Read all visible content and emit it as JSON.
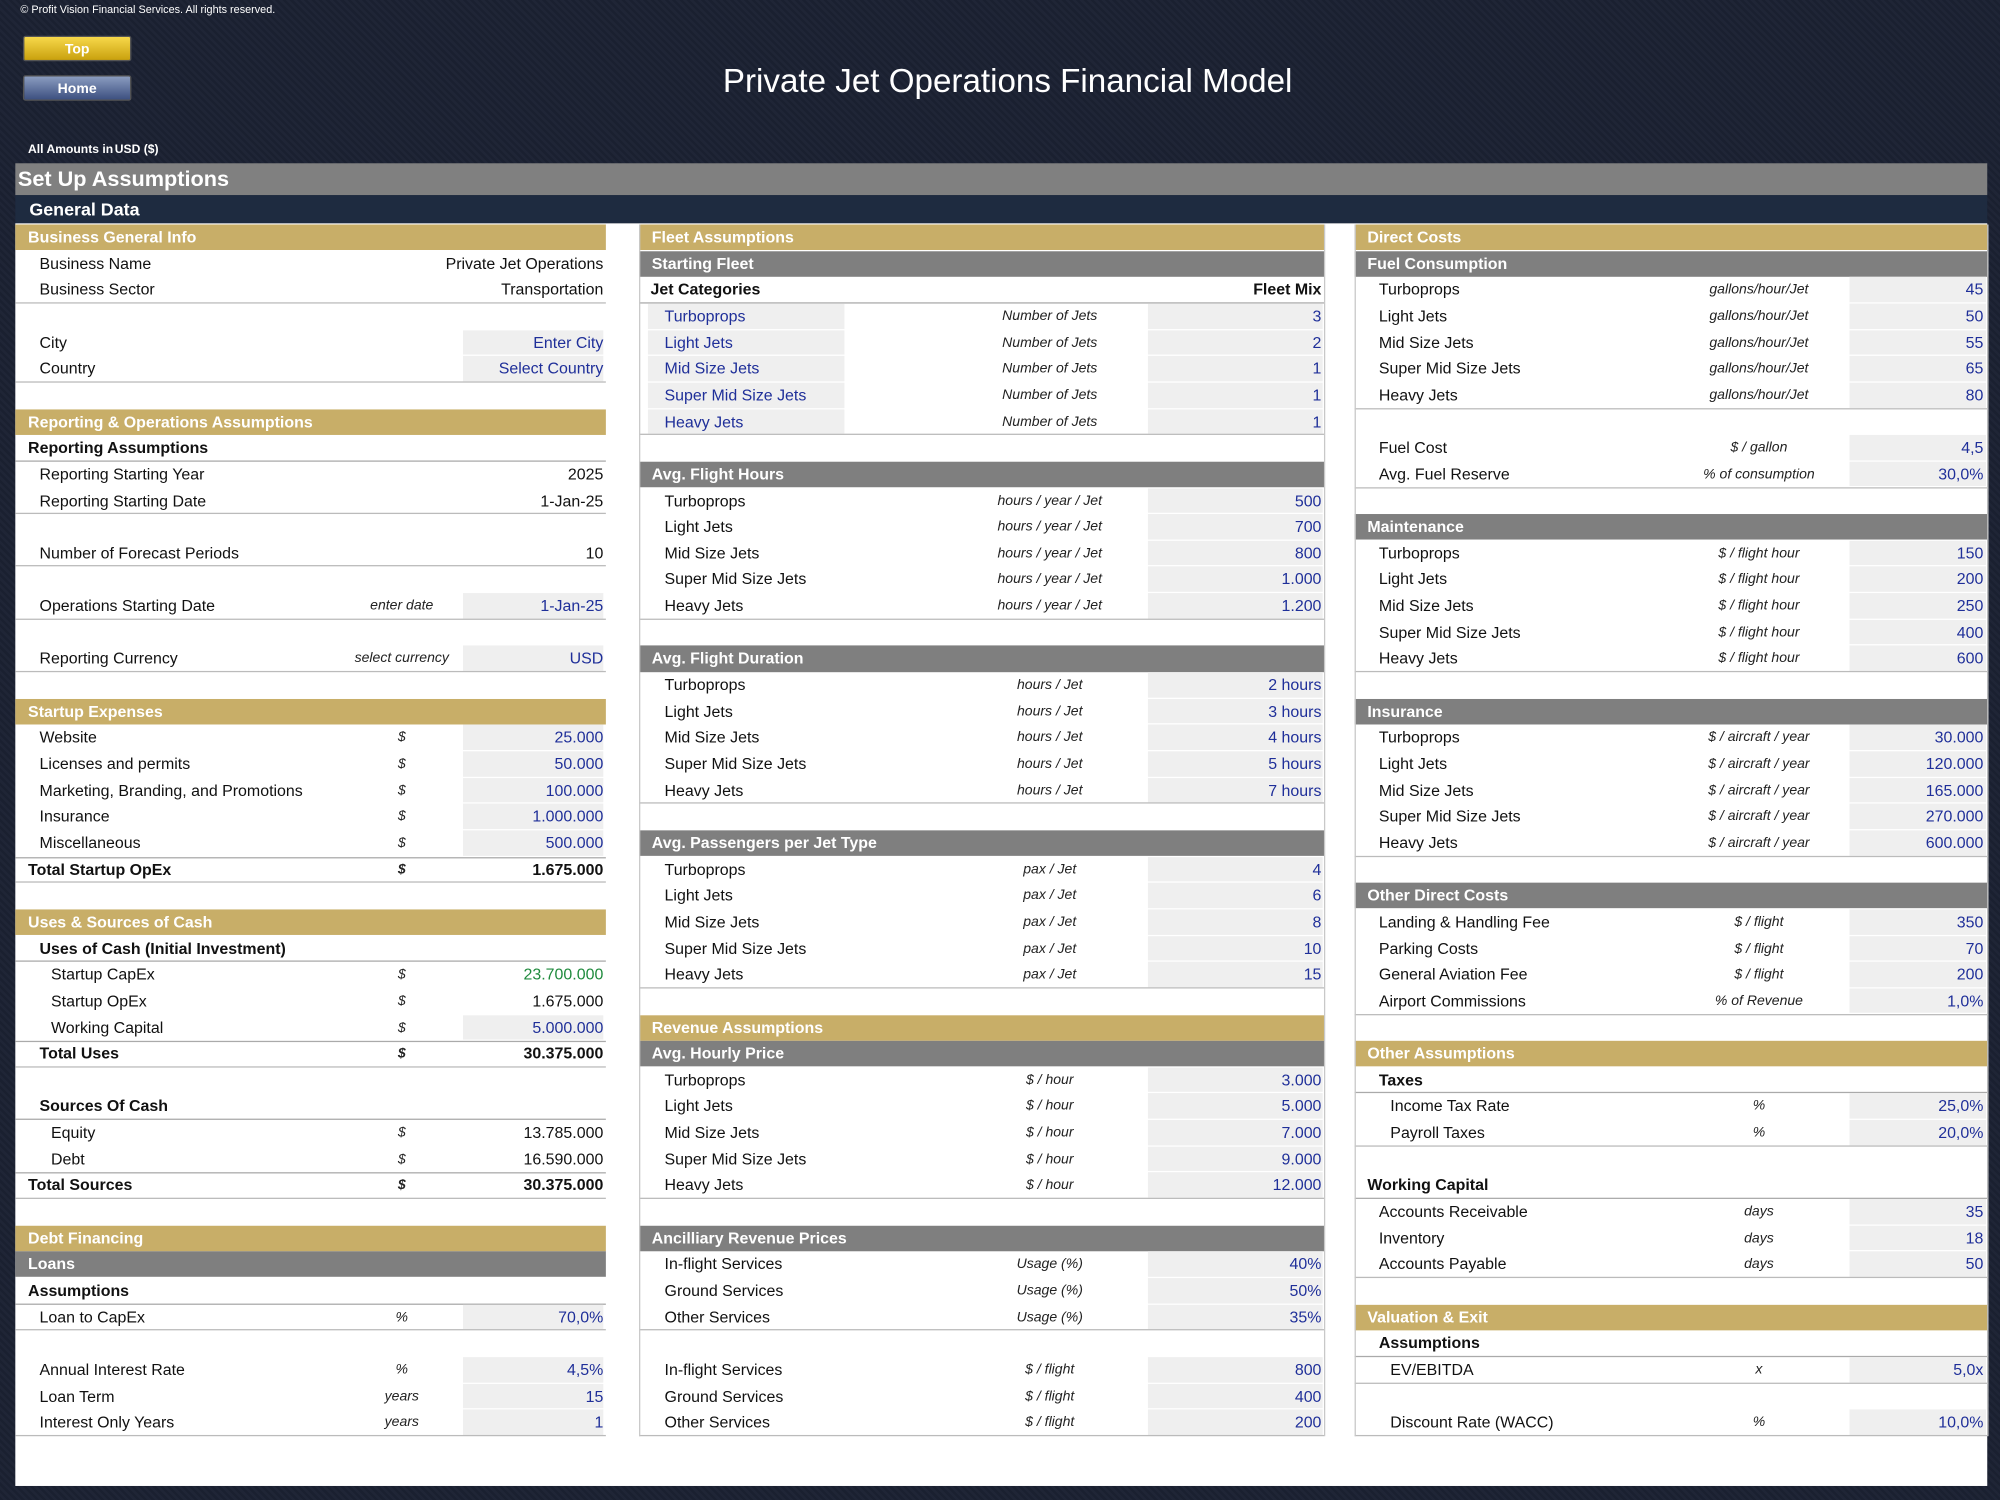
{
  "header": {
    "copyright": "© Profit Vision Financial Services. All rights reserved.",
    "buttons": [
      "Top",
      "Home"
    ],
    "title": "Private Jet Operations Financial Model",
    "amounts": "All Amounts in",
    "currency": "USD ($)"
  },
  "page_title": "Set Up Assumptions",
  "band": "General Data",
  "panels": [
    {
      "groups": [
        [
          {
            "style": "section",
            "label": "Business General Info"
          },
          {
            "label": "Business Name",
            "value": "Private Jet Operations"
          },
          {
            "label": "Business Sector",
            "value": "Transportation"
          }
        ],
        [
          {
            "label": "City",
            "value": "Enter City",
            "input": true
          },
          {
            "label": "Country",
            "value": "Select Country",
            "input": true
          }
        ],
        [
          {
            "style": "section",
            "label": "Reporting & Operations Assumptions"
          },
          {
            "style": "bold",
            "label": "Reporting Assumptions"
          },
          {
            "label": "Reporting Starting Year",
            "value": "2025"
          },
          {
            "label": "Reporting Starting Date",
            "value": "1-Jan-25"
          }
        ],
        [
          {
            "label": "Number of Forecast Periods",
            "value": "10"
          }
        ],
        [
          {
            "label": "Operations Starting Date",
            "unit": "enter date",
            "value": "1-Jan-25",
            "input": true
          }
        ],
        [
          {
            "label": "Reporting Currency",
            "unit": "select currency",
            "value": "USD",
            "input": true
          }
        ],
        [
          {
            "style": "section",
            "label": "Startup Expenses"
          },
          {
            "label": "Website",
            "unit": "$",
            "value": "25.000",
            "input": true
          },
          {
            "label": "Licenses and permits",
            "unit": "$",
            "value": "50.000",
            "input": true
          },
          {
            "label": "Marketing, Branding, and Promotions",
            "unit": "$",
            "value": "100.000",
            "input": true
          },
          {
            "label": "Insurance",
            "unit": "$",
            "value": "1.000.000",
            "input": true
          },
          {
            "label": "Miscellaneous",
            "unit": "$",
            "value": "500.000",
            "input": true
          },
          {
            "style": "total",
            "label": "Total Startup OpEx",
            "unit": "$",
            "value": "1.675.000"
          }
        ],
        [
          {
            "style": "section",
            "label": "Uses & Sources of Cash"
          },
          {
            "style": "bold",
            "level": 1,
            "label": "Uses of Cash (Initial Investment)"
          },
          {
            "level": 1,
            "label": "Startup CapEx",
            "unit": "$",
            "value": "23.700.000",
            "color": "#1e8a3c"
          },
          {
            "level": 1,
            "label": "Startup OpEx",
            "unit": "$",
            "value": "1.675.000"
          },
          {
            "level": 1,
            "label": "Working Capital",
            "unit": "$",
            "value": "5.000.000",
            "input": true
          },
          {
            "style": "total",
            "level": 1,
            "label": "Total Uses",
            "unit": "$",
            "value": "30.375.000"
          }
        ],
        [
          {
            "style": "bold",
            "level": 1,
            "label": "Sources Of Cash"
          },
          {
            "level": 1,
            "label": "Equity",
            "unit": "$",
            "value": "13.785.000"
          },
          {
            "level": 1,
            "label": "Debt",
            "unit": "$",
            "value": "16.590.000"
          },
          {
            "style": "total",
            "label": "Total Sources",
            "unit": "$",
            "value": "30.375.000"
          }
        ],
        [
          {
            "style": "section",
            "label": "Debt Financing"
          },
          {
            "style": "sub",
            "label": "Loans"
          },
          {
            "style": "bold",
            "label": "Assumptions"
          },
          {
            "label": "Loan to CapEx",
            "unit": "%",
            "value": "70,0%",
            "input": true
          }
        ],
        [
          {
            "label": "Annual Interest Rate",
            "unit": "%",
            "value": "4,5%",
            "input": true
          },
          {
            "label": "Loan Term",
            "unit": "years",
            "value": "15",
            "input": true
          },
          {
            "label": "Interest Only Years",
            "unit": "years",
            "value": "1",
            "input": true
          }
        ]
      ]
    },
    {
      "groups": [
        [
          {
            "style": "section",
            "label": "Fleet Assumptions"
          },
          {
            "style": "sub",
            "label": "Starting Fleet"
          },
          {
            "style": "bold",
            "label": "Jet Categories",
            "value": "Fleet Mix"
          },
          {
            "style": "category",
            "label": "Turboprops",
            "unit": "Number of Jets",
            "value": "3",
            "input": true
          },
          {
            "style": "category",
            "label": "Light Jets",
            "unit": "Number of Jets",
            "value": "2",
            "input": true
          },
          {
            "style": "category",
            "label": "Mid Size Jets",
            "unit": "Number of Jets",
            "value": "1",
            "input": true
          },
          {
            "style": "category",
            "label": "Super Mid Size Jets",
            "unit": "Number of Jets",
            "value": "1",
            "input": true
          },
          {
            "style": "category",
            "label": "Heavy Jets",
            "unit": "Number of Jets",
            "value": "1",
            "input": true
          }
        ],
        [
          {
            "style": "sub",
            "label": "Avg. Flight Hours"
          },
          {
            "label": "Turboprops",
            "unit": "hours / year / Jet",
            "value": "500",
            "input": true
          },
          {
            "label": "Light Jets",
            "unit": "hours / year / Jet",
            "value": "700",
            "input": true
          },
          {
            "label": "Mid Size Jets",
            "unit": "hours / year / Jet",
            "value": "800",
            "input": true
          },
          {
            "label": "Super Mid Size Jets",
            "unit": "hours / year / Jet",
            "value": "1.000",
            "input": true
          },
          {
            "label": "Heavy Jets",
            "unit": "hours / year / Jet",
            "value": "1.200",
            "input": true
          }
        ],
        [
          {
            "style": "sub",
            "label": "Avg. Flight Duration"
          },
          {
            "label": "Turboprops",
            "unit": "hours / Jet",
            "value": "2 hours",
            "input": true
          },
          {
            "label": "Light Jets",
            "unit": "hours / Jet",
            "value": "3 hours",
            "input": true
          },
          {
            "label": "Mid Size Jets",
            "unit": "hours / Jet",
            "value": "4 hours",
            "input": true
          },
          {
            "label": "Super Mid Size Jets",
            "unit": "hours / Jet",
            "value": "5 hours",
            "input": true
          },
          {
            "label": "Heavy Jets",
            "unit": "hours / Jet",
            "value": "7 hours",
            "input": true
          }
        ],
        [
          {
            "style": "sub",
            "label": "Avg. Passengers per Jet Type"
          },
          {
            "label": "Turboprops",
            "unit": "pax / Jet",
            "value": "4",
            "input": true
          },
          {
            "label": "Light Jets",
            "unit": "pax / Jet",
            "value": "6",
            "input": true
          },
          {
            "label": "Mid Size Jets",
            "unit": "pax / Jet",
            "value": "8",
            "input": true
          },
          {
            "label": "Super Mid Size Jets",
            "unit": "pax / Jet",
            "value": "10",
            "input": true
          },
          {
            "label": "Heavy Jets",
            "unit": "pax / Jet",
            "value": "15",
            "input": true
          }
        ],
        [
          {
            "style": "section",
            "label": "Revenue Assumptions"
          },
          {
            "style": "sub",
            "label": "Avg. Hourly Price"
          },
          {
            "label": "Turboprops",
            "unit": "$ / hour",
            "value": "3.000",
            "input": true
          },
          {
            "label": "Light Jets",
            "unit": "$ / hour",
            "value": "5.000",
            "input": true
          },
          {
            "label": "Mid Size Jets",
            "unit": "$ / hour",
            "value": "7.000",
            "input": true
          },
          {
            "label": "Super Mid Size Jets",
            "unit": "$ / hour",
            "value": "9.000",
            "input": true
          },
          {
            "label": "Heavy Jets",
            "unit": "$ / hour",
            "value": "12.000",
            "input": true
          }
        ],
        [
          {
            "style": "sub",
            "label": "Ancilliary Revenue Prices"
          },
          {
            "label": "In-flight Services",
            "unit": "Usage (%)",
            "value": "40%",
            "input": true
          },
          {
            "label": "Ground Services",
            "unit": "Usage (%)",
            "value": "50%",
            "input": true
          },
          {
            "label": "Other Services",
            "unit": "Usage (%)",
            "value": "35%",
            "input": true
          }
        ],
        [
          {
            "label": "In-flight Services",
            "unit": "$ / flight",
            "value": "800",
            "input": true
          },
          {
            "label": "Ground Services",
            "unit": "$ / flight",
            "value": "400",
            "input": true
          },
          {
            "label": "Other Services",
            "unit": "$ / flight",
            "value": "200",
            "input": true
          }
        ]
      ]
    },
    {
      "groups": [
        [
          {
            "style": "section",
            "label": "Direct Costs"
          },
          {
            "style": "sub",
            "label": "Fuel Consumption"
          },
          {
            "label": "Turboprops",
            "unit": "gallons/hour/Jet",
            "value": "45",
            "input": true
          },
          {
            "label": "Light Jets",
            "unit": "gallons/hour/Jet",
            "value": "50",
            "input": true
          },
          {
            "label": "Mid Size Jets",
            "unit": "gallons/hour/Jet",
            "value": "55",
            "input": true
          },
          {
            "label": "Super Mid Size Jets",
            "unit": "gallons/hour/Jet",
            "value": "65",
            "input": true
          },
          {
            "label": "Heavy Jets",
            "unit": "gallons/hour/Jet",
            "value": "80",
            "input": true
          }
        ],
        [
          {
            "label": "Fuel Cost",
            "unit": "$ / gallon",
            "value": "4,5",
            "input": true
          },
          {
            "label": "Avg. Fuel Reserve",
            "unit": "% of consumption",
            "value": "30,0%",
            "input": true
          }
        ],
        [
          {
            "style": "sub",
            "label": "Maintenance"
          },
          {
            "label": "Turboprops",
            "unit": "$ / flight hour",
            "value": "150",
            "input": true
          },
          {
            "label": "Light Jets",
            "unit": "$ / flight hour",
            "value": "200",
            "input": true
          },
          {
            "label": "Mid Size Jets",
            "unit": "$ / flight hour",
            "value": "250",
            "input": true
          },
          {
            "label": "Super Mid Size Jets",
            "unit": "$ / flight hour",
            "value": "400",
            "input": true
          },
          {
            "label": "Heavy Jets",
            "unit": "$ / flight hour",
            "value": "600",
            "input": true
          }
        ],
        [
          {
            "style": "sub",
            "label": "Insurance"
          },
          {
            "label": "Turboprops",
            "unit": "$ / aircraft / year",
            "value": "30.000",
            "input": true
          },
          {
            "label": "Light Jets",
            "unit": "$ / aircraft / year",
            "value": "120.000",
            "input": true
          },
          {
            "label": "Mid Size Jets",
            "unit": "$ / aircraft / year",
            "value": "165.000",
            "input": true
          },
          {
            "label": "Super Mid Size Jets",
            "unit": "$ / aircraft / year",
            "value": "270.000",
            "input": true
          },
          {
            "label": "Heavy Jets",
            "unit": "$ / aircraft / year",
            "value": "600.000",
            "input": true
          }
        ],
        [
          {
            "style": "sub",
            "label": "Other Direct Costs"
          },
          {
            "label": "Landing & Handling Fee",
            "unit": "$ / flight",
            "value": "350",
            "input": true
          },
          {
            "label": "Parking Costs",
            "unit": "$ / flight",
            "value": "70",
            "input": true
          },
          {
            "label": "General Aviation Fee",
            "unit": "$ / flight",
            "value": "200",
            "input": true
          },
          {
            "label": "Airport Commissions",
            "unit": "% of Revenue",
            "value": "1,0%",
            "input": true
          }
        ],
        [
          {
            "style": "section",
            "label": "Other Assumptions"
          },
          {
            "style": "bold",
            "level": 1,
            "label": "Taxes"
          },
          {
            "level": 1,
            "label": "Income Tax Rate",
            "unit": "%",
            "value": "25,0%",
            "input": true
          },
          {
            "level": 1,
            "label": "Payroll Taxes",
            "unit": "%",
            "value": "20,0%",
            "input": true
          }
        ],
        [
          {
            "style": "bold",
            "label": "Working Capital"
          },
          {
            "label": "Accounts Receivable",
            "unit": "days",
            "value": "35",
            "input": true
          },
          {
            "label": "Inventory",
            "unit": "days",
            "value": "18",
            "input": true
          },
          {
            "label": "Accounts Payable",
            "unit": "days",
            "value": "50",
            "input": true
          }
        ],
        [
          {
            "style": "section",
            "label": "Valuation & Exit"
          },
          {
            "style": "bold",
            "level": 1,
            "label": "Assumptions"
          },
          {
            "level": 1,
            "label": "EV/EBITDA",
            "unit": "x",
            "value": "5,0x",
            "input": true
          }
        ],
        [
          {
            "level": 1,
            "label": "Discount Rate (WACC)",
            "unit": "%",
            "value": "10,0%",
            "input": true
          }
        ]
      ]
    }
  ]
}
